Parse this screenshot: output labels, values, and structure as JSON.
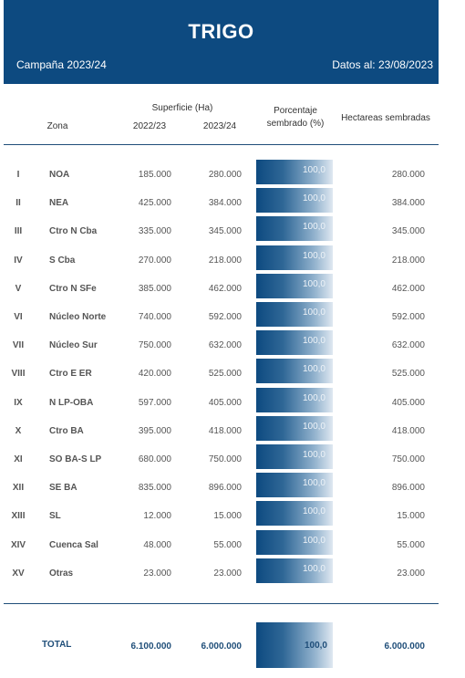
{
  "header": {
    "title": "TRIGO",
    "campaign": "Campaña 2023/24",
    "date": "Datos al: 23/08/2023"
  },
  "columns": {
    "superficie": "Superficie (Ha)",
    "zona": "Zona",
    "year_prev": "2022/23",
    "year_curr": "2023/24",
    "porcentaje_line1": "Porcentaje",
    "porcentaje_line2": "sembrado (%)",
    "hectareas": "Hectareas sembradas"
  },
  "rows": [
    {
      "num": "I",
      "zone": "NOA",
      "v2223": "185.000",
      "v2324": "280.000",
      "pct": "100,0",
      "ha": "280.000"
    },
    {
      "num": "II",
      "zone": "NEA",
      "v2223": "425.000",
      "v2324": "384.000",
      "pct": "100,0",
      "ha": "384.000"
    },
    {
      "num": "III",
      "zone": "Ctro N Cba",
      "v2223": "335.000",
      "v2324": "345.000",
      "pct": "100,0",
      "ha": "345.000"
    },
    {
      "num": "IV",
      "zone": "S Cba",
      "v2223": "270.000",
      "v2324": "218.000",
      "pct": "100,0",
      "ha": "218.000"
    },
    {
      "num": "V",
      "zone": "Ctro N SFe",
      "v2223": "385.000",
      "v2324": "462.000",
      "pct": "100,0",
      "ha": "462.000"
    },
    {
      "num": "VI",
      "zone": "Núcleo Norte",
      "v2223": "740.000",
      "v2324": "592.000",
      "pct": "100,0",
      "ha": "592.000"
    },
    {
      "num": "VII",
      "zone": "Núcleo Sur",
      "v2223": "750.000",
      "v2324": "632.000",
      "pct": "100,0",
      "ha": "632.000"
    },
    {
      "num": "VIII",
      "zone": "Ctro E ER",
      "v2223": "420.000",
      "v2324": "525.000",
      "pct": "100,0",
      "ha": "525.000"
    },
    {
      "num": "IX",
      "zone": "N LP-OBA",
      "v2223": "597.000",
      "v2324": "405.000",
      "pct": "100,0",
      "ha": "405.000"
    },
    {
      "num": "X",
      "zone": "Ctro BA",
      "v2223": "395.000",
      "v2324": "418.000",
      "pct": "100,0",
      "ha": "418.000"
    },
    {
      "num": "XI",
      "zone": "SO BA-S LP",
      "v2223": "680.000",
      "v2324": "750.000",
      "pct": "100,0",
      "ha": "750.000"
    },
    {
      "num": "XII",
      "zone": "SE BA",
      "v2223": "835.000",
      "v2324": "896.000",
      "pct": "100,0",
      "ha": "896.000"
    },
    {
      "num": "XIII",
      "zone": "SL",
      "v2223": "12.000",
      "v2324": "15.000",
      "pct": "100,0",
      "ha": "15.000"
    },
    {
      "num": "XIV",
      "zone": "Cuenca Sal",
      "v2223": "48.000",
      "v2324": "55.000",
      "pct": "100,0",
      "ha": "55.000"
    },
    {
      "num": "XV",
      "zone": "Otras",
      "v2223": "23.000",
      "v2324": "23.000",
      "pct": "100,0",
      "ha": "23.000"
    }
  ],
  "total": {
    "label": "TOTAL",
    "v2223": "6.100.000",
    "v2324": "6.000.000",
    "pct": "100,0",
    "ha": "6.000.000"
  },
  "colors": {
    "header_bg": "#0d4a80",
    "accent": "#1f4e79"
  }
}
